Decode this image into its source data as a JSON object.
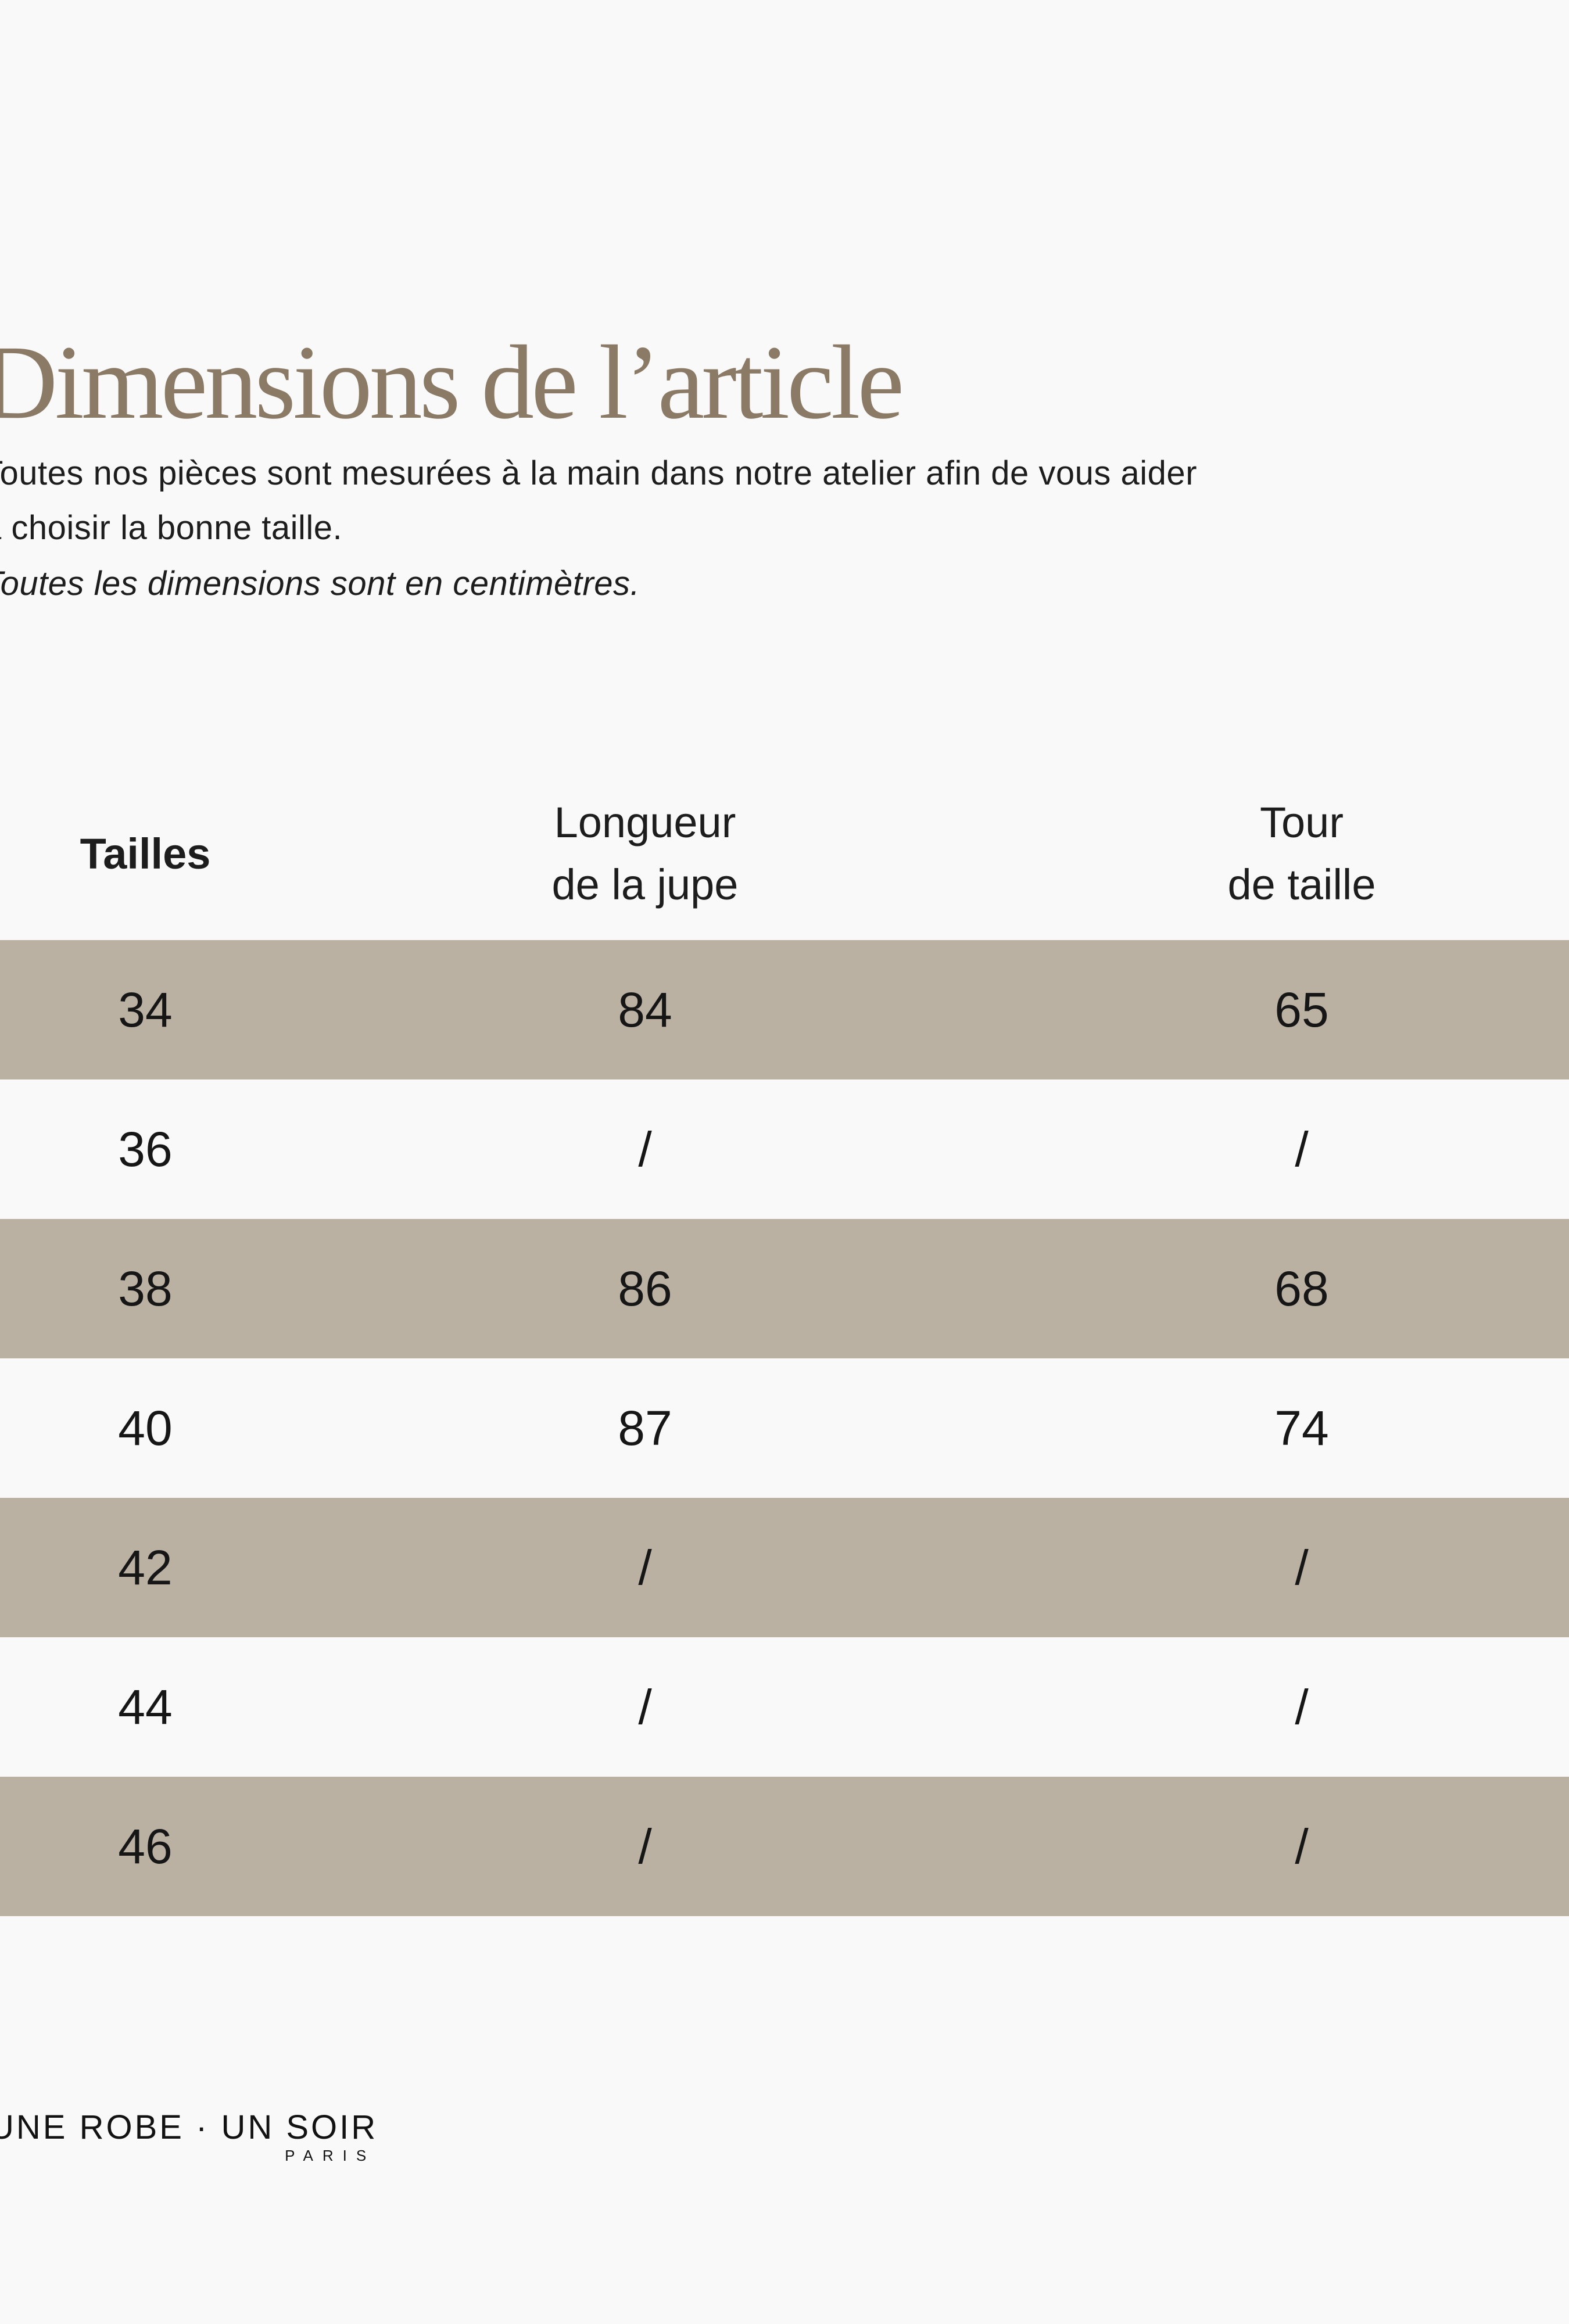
{
  "colors": {
    "background": "#f9f9f9",
    "accent_title": "#8b7a66",
    "row_shade": "#bab1a3",
    "text": "#1d1d1d"
  },
  "header": {
    "title": "Dimensions de l’article"
  },
  "intro": {
    "paragraph": "Toutes nos pièces sont mesurées à la main dans notre atelier afin de vous aider\nà choisir la bonne taille.",
    "note": "Toutes les dimensions sont en centimètres."
  },
  "size_table": {
    "columns": [
      {
        "label": "Tailles"
      },
      {
        "label": "Longueur\nde la jupe"
      },
      {
        "label": "Tour\nde taille"
      }
    ],
    "rows": [
      {
        "cells": [
          "34",
          "84",
          "65"
        ],
        "shaded": true
      },
      {
        "cells": [
          "36",
          "/",
          "/"
        ],
        "shaded": false
      },
      {
        "cells": [
          "38",
          "86",
          "68"
        ],
        "shaded": true
      },
      {
        "cells": [
          "40",
          "87",
          "74"
        ],
        "shaded": false
      },
      {
        "cells": [
          "42",
          "/",
          "/"
        ],
        "shaded": true
      },
      {
        "cells": [
          "44",
          "/",
          "/"
        ],
        "shaded": false
      },
      {
        "cells": [
          "46",
          "/",
          "/"
        ],
        "shaded": true
      }
    ]
  },
  "footer": {
    "brand": "UNE ROBE · UN SOIR",
    "city": "PARIS"
  }
}
